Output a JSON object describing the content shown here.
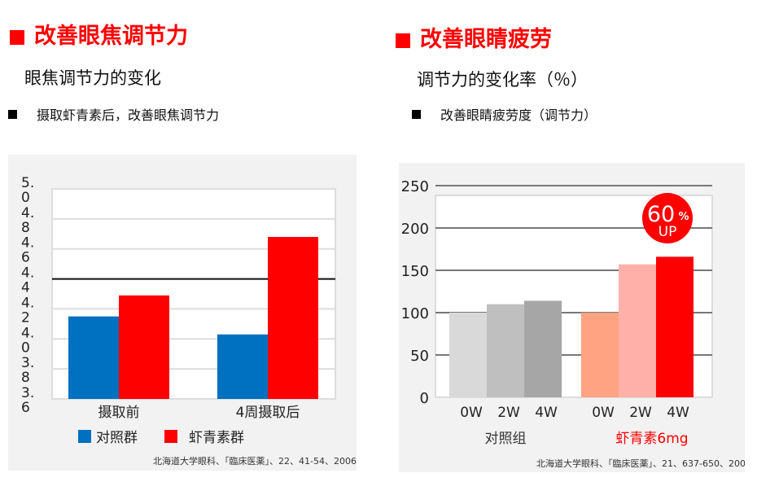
{
  "left": {
    "heading": "改善眼焦调节力",
    "subtitle": "眼焦调节力的变化",
    "note": "摄取虾青素后，改善眼焦调节力",
    "source": "北海道大学眼科、「臨床医薬」、22、41-54、2006"
  },
  "right": {
    "heading": "改善眼睛疲劳",
    "subtitle": "调节力的变化率（％）",
    "note": "改善眼睛疲劳度（调节力）",
    "source": "北海道大学眼科、「臨床医薬」、21、637-650、2005"
  },
  "chart_data": [
    {
      "type": "bar",
      "categories": [
        "摄取前",
        "4周摄取后"
      ],
      "series": [
        {
          "name": "对照群",
          "values": [
            4.15,
            4.03
          ],
          "color": "#0070c0"
        },
        {
          "name": "虾青素群",
          "values": [
            4.29,
            4.68
          ],
          "color": "#ff0000"
        }
      ],
      "yticks": [
        "5.0",
        "4.8",
        "4.6",
        "4.4",
        "4.2",
        "4.0",
        "3.8",
        "3.6"
      ],
      "ylim": [
        3.6,
        5.0
      ],
      "reference_line": 4.4,
      "grid": true,
      "legend": "bottom"
    },
    {
      "type": "bar",
      "groups": [
        {
          "label": "对照组",
          "label_color": "#333333",
          "categories": [
            "0W",
            "2W",
            "4W"
          ],
          "values": [
            100,
            110,
            114
          ],
          "colors": [
            "#d9d9d9",
            "#bfbfbf",
            "#a6a6a6"
          ]
        },
        {
          "label": "虾青素6mg",
          "label_color": "#ff0000",
          "categories": [
            "0W",
            "2W",
            "4W"
          ],
          "values": [
            100,
            157,
            166
          ],
          "colors": [
            "#ffa382",
            "#ffb0a8",
            "#ff0000"
          ]
        }
      ],
      "yticks": [
        "250",
        "200",
        "150",
        "100",
        "50",
        "0"
      ],
      "ylim": [
        0,
        250
      ],
      "grid": true,
      "badge": {
        "line1": "60",
        "pct": "%",
        "line2": "UP",
        "color": "#ff0000"
      }
    }
  ]
}
